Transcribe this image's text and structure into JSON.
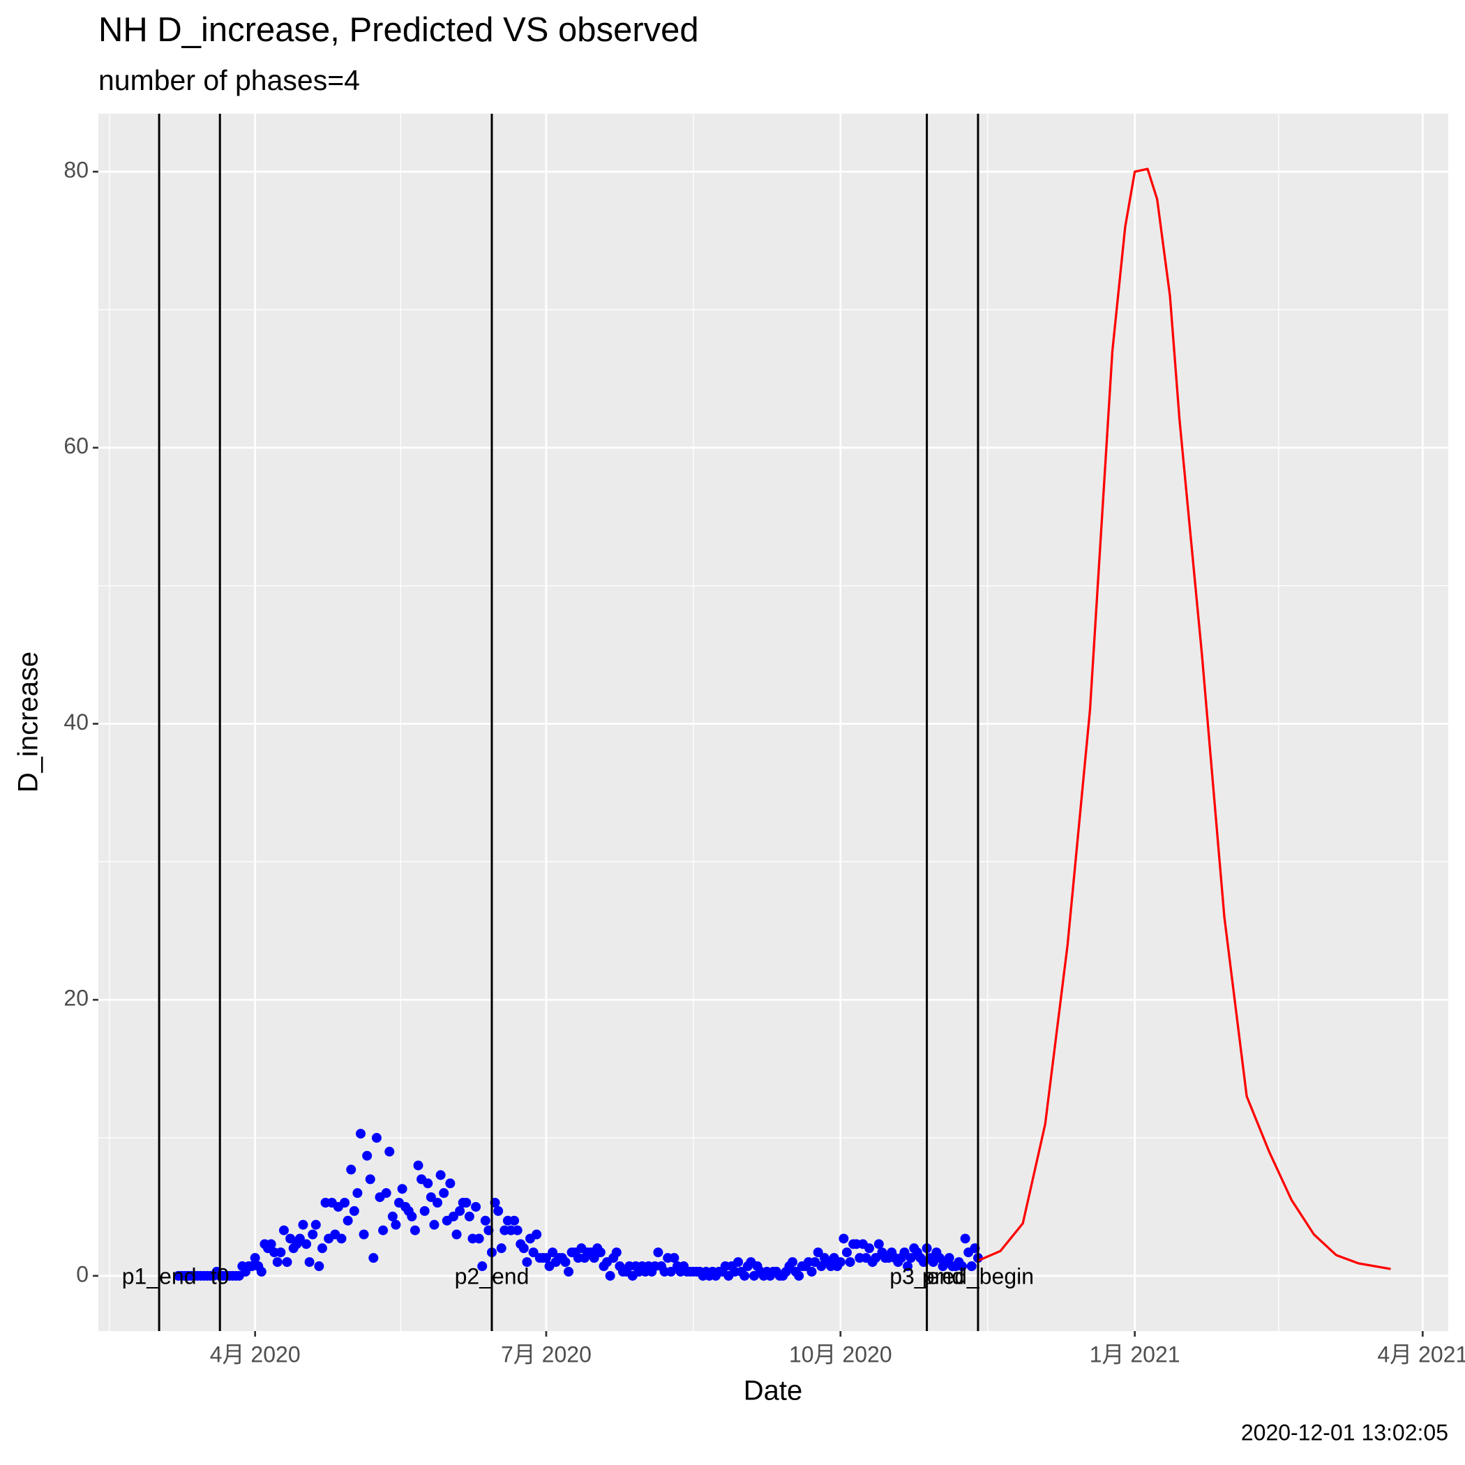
{
  "chart_data": {
    "type": "scatter",
    "title": "NH D_increase, Predicted VS observed",
    "subtitle": "number of phases=4",
    "x_label": "Date",
    "y_label": "D_increase",
    "caption": "2020-12-01 13:02:05",
    "xlim": [
      "2020-02-12",
      "2021-04-09"
    ],
    "ylim": [
      -4,
      84.2
    ],
    "xticks": [
      {
        "value": "2020-04-01",
        "label": "4月 2020"
      },
      {
        "value": "2020-07-01",
        "label": "7月 2020"
      },
      {
        "value": "2020-10-01",
        "label": "10月 2020"
      },
      {
        "value": "2021-01-01",
        "label": "1月 2021"
      },
      {
        "value": "2021-04-01",
        "label": "4月 2021"
      }
    ],
    "yticks": [
      0,
      20,
      40,
      60,
      80
    ],
    "grid": true,
    "vlines": [
      {
        "x": "2020-03-02",
        "label": "p1_end"
      },
      {
        "x": "2020-03-21",
        "label": "t0"
      },
      {
        "x": "2020-06-14",
        "label": "p2_end"
      },
      {
        "x": "2020-10-28",
        "label": "p3_end"
      },
      {
        "x": "2020-11-13",
        "label": "pred_begin"
      }
    ],
    "series": [
      {
        "type": "scatter",
        "color": "#0000FF",
        "x": [
          "2020-03-08",
          "2020-03-09",
          "2020-03-10",
          "2020-03-11",
          "2020-03-12",
          "2020-03-13",
          "2020-03-14",
          "2020-03-15",
          "2020-03-16",
          "2020-03-17",
          "2020-03-18",
          "2020-03-19",
          "2020-03-20",
          "2020-03-21",
          "2020-03-22",
          "2020-03-23",
          "2020-03-24",
          "2020-03-25",
          "2020-03-26",
          "2020-03-27",
          "2020-03-28",
          "2020-03-29",
          "2020-03-30",
          "2020-03-31",
          "2020-04-01",
          "2020-04-02",
          "2020-04-03",
          "2020-04-04",
          "2020-04-05",
          "2020-04-06",
          "2020-04-07",
          "2020-04-08",
          "2020-04-09",
          "2020-04-10",
          "2020-04-11",
          "2020-04-12",
          "2020-04-13",
          "2020-04-14",
          "2020-04-15",
          "2020-04-16",
          "2020-04-17",
          "2020-04-18",
          "2020-04-19",
          "2020-04-20",
          "2020-04-21",
          "2020-04-22",
          "2020-04-23",
          "2020-04-24",
          "2020-04-25",
          "2020-04-26",
          "2020-04-27",
          "2020-04-28",
          "2020-04-29",
          "2020-04-30",
          "2020-05-01",
          "2020-05-02",
          "2020-05-03",
          "2020-05-04",
          "2020-05-05",
          "2020-05-06",
          "2020-05-07",
          "2020-05-08",
          "2020-05-09",
          "2020-05-10",
          "2020-05-11",
          "2020-05-12",
          "2020-05-13",
          "2020-05-14",
          "2020-05-15",
          "2020-05-16",
          "2020-05-17",
          "2020-05-18",
          "2020-05-19",
          "2020-05-20",
          "2020-05-21",
          "2020-05-22",
          "2020-05-23",
          "2020-05-24",
          "2020-05-25",
          "2020-05-26",
          "2020-05-27",
          "2020-05-28",
          "2020-05-29",
          "2020-05-30",
          "2020-05-31",
          "2020-06-01",
          "2020-06-02",
          "2020-06-03",
          "2020-06-04",
          "2020-06-05",
          "2020-06-06",
          "2020-06-07",
          "2020-06-08",
          "2020-06-09",
          "2020-06-10",
          "2020-06-11",
          "2020-06-12",
          "2020-06-13",
          "2020-06-14",
          "2020-06-15",
          "2020-06-16",
          "2020-06-17",
          "2020-06-18",
          "2020-06-19",
          "2020-06-20",
          "2020-06-21",
          "2020-06-22",
          "2020-06-23",
          "2020-06-24",
          "2020-06-25",
          "2020-06-26",
          "2020-06-27",
          "2020-06-28",
          "2020-06-29",
          "2020-06-30",
          "2020-07-01",
          "2020-07-02",
          "2020-07-03",
          "2020-07-04",
          "2020-07-05",
          "2020-07-06",
          "2020-07-07",
          "2020-07-08",
          "2020-07-09",
          "2020-07-10",
          "2020-07-11",
          "2020-07-12",
          "2020-07-13",
          "2020-07-14",
          "2020-07-15",
          "2020-07-16",
          "2020-07-17",
          "2020-07-18",
          "2020-07-19",
          "2020-07-20",
          "2020-07-21",
          "2020-07-22",
          "2020-07-23",
          "2020-07-24",
          "2020-07-25",
          "2020-07-26",
          "2020-07-27",
          "2020-07-28",
          "2020-07-29",
          "2020-07-30",
          "2020-07-31",
          "2020-08-01",
          "2020-08-02",
          "2020-08-03",
          "2020-08-04",
          "2020-08-05",
          "2020-08-06",
          "2020-08-07",
          "2020-08-08",
          "2020-08-09",
          "2020-08-10",
          "2020-08-11",
          "2020-08-12",
          "2020-08-13",
          "2020-08-14",
          "2020-08-15",
          "2020-08-16",
          "2020-08-17",
          "2020-08-18",
          "2020-08-19",
          "2020-08-20",
          "2020-08-21",
          "2020-08-22",
          "2020-08-23",
          "2020-08-24",
          "2020-08-25",
          "2020-08-26",
          "2020-08-27",
          "2020-08-28",
          "2020-08-29",
          "2020-08-30",
          "2020-08-31",
          "2020-09-01",
          "2020-09-02",
          "2020-09-03",
          "2020-09-04",
          "2020-09-05",
          "2020-09-06",
          "2020-09-07",
          "2020-09-08",
          "2020-09-09",
          "2020-09-10",
          "2020-09-11",
          "2020-09-12",
          "2020-09-13",
          "2020-09-14",
          "2020-09-15",
          "2020-09-16",
          "2020-09-17",
          "2020-09-18",
          "2020-09-19",
          "2020-09-20",
          "2020-09-21",
          "2020-09-22",
          "2020-09-23",
          "2020-09-24",
          "2020-09-25",
          "2020-09-26",
          "2020-09-27",
          "2020-09-28",
          "2020-09-29",
          "2020-09-30",
          "2020-10-01",
          "2020-10-02",
          "2020-10-03",
          "2020-10-04",
          "2020-10-05",
          "2020-10-06",
          "2020-10-07",
          "2020-10-08",
          "2020-10-09",
          "2020-10-10",
          "2020-10-11",
          "2020-10-12",
          "2020-10-13",
          "2020-10-14",
          "2020-10-15",
          "2020-10-16",
          "2020-10-17",
          "2020-10-18",
          "2020-10-19",
          "2020-10-20",
          "2020-10-21",
          "2020-10-22",
          "2020-10-23",
          "2020-10-24",
          "2020-10-25",
          "2020-10-26",
          "2020-10-27",
          "2020-10-28",
          "2020-10-29",
          "2020-10-30",
          "2020-10-31",
          "2020-11-01",
          "2020-11-02",
          "2020-11-03",
          "2020-11-04",
          "2020-11-05",
          "2020-11-06",
          "2020-11-07",
          "2020-11-08",
          "2020-11-09",
          "2020-11-10",
          "2020-11-11",
          "2020-11-12",
          "2020-11-13"
        ],
        "values": [
          0,
          0,
          0,
          0,
          0,
          0,
          0,
          0,
          0,
          0,
          0,
          0,
          0.3,
          0,
          0,
          0,
          0,
          0,
          0,
          0,
          0.7,
          0.3,
          0.7,
          0.7,
          1.3,
          0.7,
          0.3,
          2.3,
          2,
          2.3,
          1.7,
          1,
          1.7,
          3.3,
          1,
          2.7,
          2,
          2.3,
          2.7,
          3.7,
          2.3,
          1,
          3,
          3.7,
          0.7,
          2,
          5.3,
          2.7,
          5.3,
          3,
          5,
          2.7,
          5.3,
          4,
          7.7,
          4.7,
          6,
          10.3,
          3,
          8.7,
          7,
          1.3,
          10,
          5.7,
          3.3,
          6,
          9,
          4.3,
          3.7,
          5.3,
          6.3,
          5,
          4.7,
          4.3,
          3.3,
          8,
          7,
          4.7,
          6.7,
          5.7,
          3.7,
          5.3,
          7.3,
          6,
          4,
          6.7,
          4.3,
          3,
          4.7,
          5.3,
          5.3,
          4.3,
          2.7,
          5,
          2.7,
          0.7,
          4,
          3.3,
          1.7,
          5.3,
          4.7,
          2,
          3.3,
          4,
          3.3,
          4,
          3.3,
          2.3,
          2,
          1,
          2.7,
          1.7,
          3,
          1.3,
          1.3,
          1.3,
          0.7,
          1.7,
          1,
          1.3,
          1.3,
          1,
          0.3,
          1.7,
          1.7,
          1.3,
          2,
          1.3,
          1.7,
          1.7,
          1.3,
          2,
          1.7,
          0.7,
          1,
          0,
          1.3,
          1.7,
          0.7,
          0.3,
          0.3,
          0.7,
          0,
          0.7,
          0.3,
          0.7,
          0.3,
          0.7,
          0.3,
          0.7,
          1.7,
          0.7,
          0.3,
          1.3,
          0.3,
          1.3,
          0.7,
          0.3,
          0.7,
          0.3,
          0.3,
          0.3,
          0.3,
          0.3,
          0,
          0.3,
          0,
          0.3,
          0,
          0.3,
          0.3,
          0.7,
          0,
          0.7,
          0.3,
          1,
          0.3,
          0,
          0.7,
          1,
          0,
          0.7,
          0.3,
          0,
          0.3,
          0,
          0.3,
          0.3,
          0,
          0,
          0.3,
          0.7,
          1,
          0.3,
          0,
          0.7,
          0.7,
          1,
          0.3,
          1,
          1.7,
          0.7,
          1.3,
          1,
          0.7,
          1.3,
          0.7,
          1,
          2.7,
          1.7,
          1,
          2.3,
          2.3,
          1.3,
          2.3,
          1.3,
          2,
          1,
          1.3,
          2.3,
          1.7,
          1.3,
          1.3,
          1.7,
          1.3,
          1,
          1.3,
          1.7,
          0.7,
          1.3,
          2,
          1.7,
          1.3,
          1,
          2,
          1.3,
          1,
          1.7,
          1.3,
          0.7,
          1,
          1.3,
          0.7,
          0.7,
          1,
          0.7,
          2.7,
          1.7,
          0.7,
          2,
          1.3
        ]
      },
      {
        "type": "line",
        "color": "#FF0000",
        "x": [
          "2020-11-13",
          "2020-11-20",
          "2020-11-27",
          "2020-12-04",
          "2020-12-11",
          "2020-12-18",
          "2020-12-25",
          "2020-12-29",
          "2021-01-01",
          "2021-01-05",
          "2021-01-08",
          "2021-01-12",
          "2021-01-15",
          "2021-01-22",
          "2021-01-29",
          "2021-02-05",
          "2021-02-12",
          "2021-02-19",
          "2021-02-26",
          "2021-03-05",
          "2021-03-12",
          "2021-03-22"
        ],
        "values": [
          1.1,
          1.8,
          3.8,
          11,
          24,
          41,
          67,
          76,
          80,
          80.2,
          78,
          71,
          62,
          45,
          26,
          13,
          9,
          5.5,
          3,
          1.5,
          0.9,
          0.5
        ]
      }
    ]
  }
}
